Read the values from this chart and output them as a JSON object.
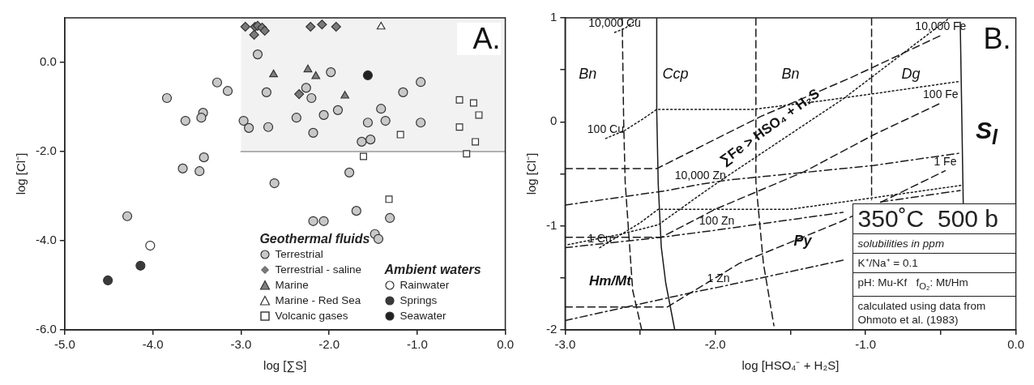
{
  "chart_data": [
    {
      "type": "scatter",
      "xlabel": "log [∑S]",
      "ylabel": "log [Cl⁻]",
      "xlim": [
        -5,
        0
      ],
      "ylim": [
        -6,
        1
      ],
      "xticks": [
        {
          "value": -5,
          "label": "-5.0"
        },
        {
          "value": -4,
          "label": "-4.0"
        },
        {
          "value": -3,
          "label": "-3.0"
        },
        {
          "value": -2,
          "label": "-2.0"
        },
        {
          "value": -1,
          "label": "-1.0"
        },
        {
          "value": 0,
          "label": "0.0"
        }
      ],
      "yticks": [
        {
          "value": -6,
          "label": "-6.0"
        },
        {
          "value": -4,
          "label": "-4.0"
        },
        {
          "value": -2,
          "label": "-2.0"
        },
        {
          "value": 0,
          "label": "0.0"
        }
      ],
      "legend": "bottom right",
      "annotations": [
        "A.",
        "Geothermal fluids",
        "Ambient waters"
      ],
      "series": [
        {
          "type": "line",
          "color": "#9a9a9a",
          "x": [
            -3,
            0
          ],
          "values": [
            -2,
            -2
          ],
          "lower": [
            -2,
            -2
          ],
          "upper": [
            1,
            1
          ]
        },
        {
          "name": "Terrestrial",
          "marker": "circle",
          "color": "#c8c8c8",
          "x": [
            -2.81,
            -3.27,
            -3.15,
            -3.84,
            -2.71,
            -3.43,
            -3.45,
            -3.63,
            -2.97,
            -2.91,
            -2.69,
            -2.37,
            -3.42,
            -3.66,
            -3.47,
            -2.62,
            -1.98,
            -2.26,
            -2.2,
            -1.9,
            -2.06,
            -2.18,
            -1.56,
            -1.36,
            -1.41,
            -1.16,
            -0.96,
            -0.96,
            -1.63,
            -1.53,
            -1.77,
            -1.69,
            -2.18,
            -2.06,
            -1.31,
            -1.48,
            -1.44,
            -4.29
          ],
          "values": [
            0.18,
            -0.45,
            -0.64,
            -0.8,
            -0.67,
            -1.13,
            -1.24,
            -1.31,
            -1.31,
            -1.47,
            -1.45,
            -1.24,
            -2.13,
            -2.38,
            -2.44,
            -2.71,
            -0.22,
            -0.57,
            -0.8,
            -1.07,
            -1.18,
            -1.58,
            -1.35,
            -1.31,
            -1.04,
            -0.67,
            -0.44,
            -1.35,
            -1.78,
            -1.73,
            -2.47,
            -3.33,
            -3.56,
            -3.56,
            -3.49,
            -3.85,
            -3.96,
            -3.45
          ]
        },
        {
          "name": "Terrestrial - saline",
          "marker": "diamond",
          "color": "#7a7a7a",
          "x": [
            -2.95,
            -2.84,
            -2.81,
            -2.76,
            -2.73,
            -2.85,
            -2.34,
            -2.21,
            -2.08,
            -1.92
          ],
          "values": [
            0.8,
            0.8,
            0.82,
            0.78,
            0.71,
            0.62,
            -0.71,
            0.8,
            0.85,
            0.8
          ]
        },
        {
          "name": "Marine",
          "marker": "triangle",
          "color": "#808080",
          "x": [
            -2.63,
            -2.24,
            -2.15,
            -1.82
          ],
          "values": [
            -0.27,
            -0.16,
            -0.31,
            -0.75
          ]
        },
        {
          "name": "Marine - Red Sea",
          "marker": "triangle",
          "color": "#ffffff",
          "x": [
            -1.41
          ],
          "values": [
            0.8
          ]
        },
        {
          "name": "Volcanic gases",
          "marker": "square",
          "color": "#ffffff",
          "x": [
            -0.52,
            -0.36,
            -0.3,
            -0.52,
            -0.34,
            -0.44,
            -1.19,
            -1.61,
            -1.32
          ],
          "values": [
            -0.84,
            -0.91,
            -1.18,
            -1.45,
            -1.78,
            -2.05,
            -1.62,
            -2.11,
            -3.07
          ]
        },
        {
          "name": "Rainwater",
          "marker": "circle",
          "color": "#ffffff",
          "x": [
            -4.03
          ],
          "values": [
            -4.11
          ]
        },
        {
          "name": "Springs",
          "marker": "circle",
          "color": "#3a3a3a",
          "x": [
            -4.14,
            -4.51
          ],
          "values": [
            -4.56,
            -4.89
          ]
        },
        {
          "name": "Seawater",
          "marker": "circle",
          "color": "#222222",
          "x": [
            -1.56
          ],
          "values": [
            -0.29
          ]
        }
      ]
    },
    {
      "type": "line",
      "xlabel": "log [HSO₄⁻ + H₂S]",
      "ylabel": "log [Cl⁻]",
      "xlim": [
        -3,
        0
      ],
      "ylim": [
        -2,
        1
      ],
      "xticks": [
        {
          "value": -3,
          "label": "-3.0"
        },
        {
          "value": -2.5,
          "label": null
        },
        {
          "value": -2,
          "label": "-2.0"
        },
        {
          "value": -1.5,
          "label": null
        },
        {
          "value": -1,
          "label": "-1.0"
        },
        {
          "value": -0.5,
          "label": null
        },
        {
          "value": 0,
          "label": "0.0"
        }
      ],
      "yticks": [
        -2,
        {
          "value": -1.5,
          "label": null
        },
        -1,
        {
          "value": -0.5,
          "label": null
        },
        0,
        {
          "value": 0.5,
          "label": null
        },
        1
      ],
      "annotations": [
        "B.",
        "350˚C  500 b",
        "solubilities in ppm",
        "K⁺/Na⁺ = 0.1",
        "pH: Mu-Kf   f$_{O₂}$: Mt/Hm",
        "calculated using data from Ohmoto et al. (1983)",
        "Bn",
        "Ccp",
        "Bn",
        "Dg",
        "S$_{l}$",
        "Py",
        "Hm/Mt",
        "∑Fe > HSO₄ + H₂S",
        {
          "text": "10,000 Cu",
          "x": -2.67,
          "y": 0.86
        },
        {
          "text": "100 Cu",
          "x": -2.73,
          "y": -0.16
        },
        {
          "text": "1 Cu",
          "x": -2.77,
          "y": -1.21
        },
        {
          "text": "10,000 Fe",
          "x": -0.5,
          "y": 0.83
        },
        {
          "text": "100 Fe",
          "x": -0.5,
          "y": 0.18
        },
        {
          "text": "1 Fe",
          "x": -0.47,
          "y": -0.47
        },
        {
          "text": "10,000 Zn",
          "x": -2.1,
          "y": -0.6
        },
        {
          "text": "100 Zn",
          "x": -1.99,
          "y": -1.04
        },
        {
          "text": "1 Zn",
          "x": -1.98,
          "y": -1.59
        }
      ],
      "series": [
        {
          "color": "#1a1a1a",
          "line_style": "solid",
          "x": [
            -2.39,
            -2.39,
            -2.38,
            -2.36,
            -2.33,
            -2.27
          ],
          "values": [
            1,
            0.1,
            -0.6,
            -1.2,
            -1.55,
            -2
          ]
        },
        {
          "color": "#1a1a1a",
          "line_style": "solid",
          "x": [
            -0.37,
            -0.35
          ],
          "values": [
            0.96,
            -0.78
          ]
        },
        {
          "color": "#1a1a1a",
          "line_style": "dashed",
          "x": [
            -2.62,
            -2.61,
            -2.6,
            -2.55,
            -2.49
          ],
          "values": [
            1,
            0,
            -0.58,
            -1.62,
            -2
          ]
        },
        {
          "color": "#1a1a1a",
          "line_style": "dashed",
          "x": [
            -1.73,
            -1.73,
            -1.73,
            -1.68,
            -1.61
          ],
          "values": [
            1,
            0,
            -0.58,
            -1.36,
            -1.96
          ]
        },
        {
          "color": "#1a1a1a",
          "line_style": "dashed",
          "x": [
            -0.96,
            -0.96
          ],
          "values": [
            1,
            -0.75
          ]
        },
        {
          "color": "#1a1a1a",
          "line_style": "dotted",
          "x": [
            -2.67,
            -2.6,
            -2.51
          ],
          "values": [
            0.86,
            0.9,
            1
          ]
        },
        {
          "color": "#1a1a1a",
          "line_style": "dotted",
          "x": [
            -2.73,
            -2.6,
            -2.48,
            -2.39,
            -1.75,
            -1.3,
            -0.9,
            -0.37
          ],
          "values": [
            -0.16,
            -0.08,
            0.03,
            0.12,
            0.12,
            0.2,
            0.28,
            0.39
          ]
        },
        {
          "color": "#1a1a1a",
          "line_style": "dotted",
          "x": [
            -2.77,
            -2.5,
            -2.38,
            -1.5,
            -1,
            -0.36
          ],
          "values": [
            -1.21,
            -0.97,
            -0.84,
            -0.84,
            -0.74,
            -0.61
          ]
        },
        {
          "color": "#1a1a1a",
          "line_style": "dotted",
          "x": [
            -2.98,
            -2.63,
            -2.38,
            -2.1,
            -1.96,
            -1.15,
            -0.44
          ],
          "values": [
            -1.18,
            -1.08,
            -0.99,
            -0.7,
            -0.56,
            0.22,
            1
          ]
        },
        {
          "color": "#1a1a1a",
          "line_style": "dashed",
          "x": [
            -3,
            -2.39,
            -1.7,
            -1.09,
            -0.5
          ],
          "values": [
            -0.45,
            -0.45,
            0.05,
            0.43,
            0.83
          ]
        },
        {
          "color": "#1a1a1a",
          "line_style": "dashed",
          "x": [
            -3,
            -2.36,
            -2,
            -1.41,
            -0.94,
            -0.5
          ],
          "values": [
            -1.11,
            -1.11,
            -0.84,
            -0.48,
            -0.12,
            0.18
          ]
        },
        {
          "color": "#1a1a1a",
          "line_style": "dashed",
          "x": [
            -3,
            -2.32,
            -1.84,
            -1.15,
            -0.47
          ],
          "values": [
            -1.78,
            -1.78,
            -1.36,
            -0.95,
            -0.47
          ]
        },
        {
          "color": "#1a1a1a",
          "line_style": "dashdot",
          "x": [
            -3,
            -2.32,
            -2.1,
            -1.92,
            -0.95,
            -0.37
          ],
          "values": [
            -0.8,
            -0.66,
            -0.6,
            -0.56,
            -0.42,
            -0.3
          ]
        },
        {
          "color": "#1a1a1a",
          "line_style": "dashdot",
          "x": [
            -3,
            -2.36,
            -1.99,
            -1.15,
            -1.0,
            -0.9,
            -0.37
          ],
          "values": [
            -1.21,
            -1.11,
            -1.04,
            -0.87,
            null,
            -0.77,
            -0.66
          ]
        },
        {
          "color": "#1a1a1a",
          "line_style": "dashdot",
          "x": [
            -3,
            -2.12,
            -1.98,
            -1.15
          ],
          "values": [
            -1.91,
            -1.63,
            -1.59,
            -1.33
          ]
        }
      ]
    }
  ]
}
